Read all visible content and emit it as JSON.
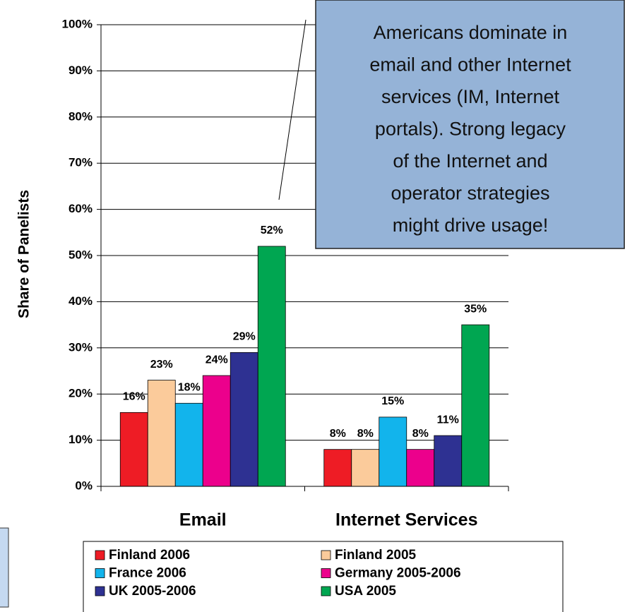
{
  "chart_data": {
    "type": "bar",
    "y_label": "Share of Panelists",
    "categories": [
      "Email",
      "Internet Services"
    ],
    "series": [
      {
        "name": "Finland 2006",
        "color": "#ee1c25",
        "values": [
          16,
          8
        ],
        "value_labels": [
          "16%",
          "8%"
        ]
      },
      {
        "name": "Finland 2005",
        "color": "#fbcb9b",
        "values": [
          23,
          8
        ],
        "value_labels": [
          "23%",
          "8%"
        ]
      },
      {
        "name": "France 2006",
        "color": "#12b4ec",
        "values": [
          18,
          15
        ],
        "value_labels": [
          "18%",
          "15%"
        ]
      },
      {
        "name": "Germany 2005-2006",
        "color": "#ec008c",
        "values": [
          24,
          8
        ],
        "value_labels": [
          "24%",
          "8%"
        ]
      },
      {
        "name": "UK 2005-2006",
        "color": "#2e3192",
        "values": [
          29,
          11
        ],
        "value_labels": [
          "29%",
          "11%"
        ]
      },
      {
        "name": "USA 2005",
        "color": "#00a651",
        "values": [
          52,
          35
        ],
        "value_labels": [
          "52%",
          "35%"
        ]
      }
    ],
    "ylim": [
      0,
      100
    ],
    "yticks": [
      {
        "value": 0,
        "label": "0%"
      },
      {
        "value": 10,
        "label": "10%"
      },
      {
        "value": 20,
        "label": "20%"
      },
      {
        "value": 30,
        "label": "30%"
      },
      {
        "value": 40,
        "label": "40%"
      },
      {
        "value": 50,
        "label": "50%"
      },
      {
        "value": 60,
        "label": "60%"
      },
      {
        "value": 70,
        "label": "70%"
      },
      {
        "value": 80,
        "label": "80%"
      },
      {
        "value": 90,
        "label": "90%"
      },
      {
        "value": 100,
        "label": "100%"
      }
    ],
    "grid": true,
    "annotation": [
      "Americans dominate in",
      "email and other Internet",
      "services (IM, Internet",
      "portals). Strong legacy",
      "of the Internet and",
      "operator strategies",
      "might drive usage!"
    ]
  }
}
